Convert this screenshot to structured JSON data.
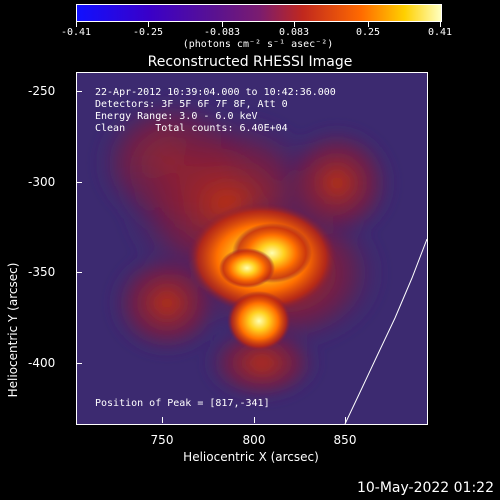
{
  "colorbar": {
    "ticks": [
      "-0.41",
      "-0.25",
      "-0.083",
      "0.083",
      "0.25",
      "0.41"
    ],
    "units": "(photons cm⁻² s⁻¹ asec⁻²)"
  },
  "title": "Reconstructed RHESSI Image",
  "info": {
    "time": "22-Apr-2012 10:39:04.000 to 10:42:36.000",
    "detectors": "Detectors: 3F 5F 6F 7F 8F, Att 0",
    "energy": "Energy Range: 3.0 - 6.0 keV",
    "clean": "Clean     Total counts: 6.40E+04",
    "peak": "Position of Peak = [817,-341]"
  },
  "axes": {
    "xlabel": "Heliocentric X (arcsec)",
    "ylabel": "Heliocentric Y (arcsec)",
    "xticks": [
      "750",
      "800",
      "850"
    ],
    "yticks": [
      "-250",
      "-300",
      "-350",
      "-400"
    ]
  },
  "footer": {
    "date": "10-May-2022 01:22"
  },
  "colors": {
    "background": "#3c2a70",
    "peak": "#ffff90"
  }
}
